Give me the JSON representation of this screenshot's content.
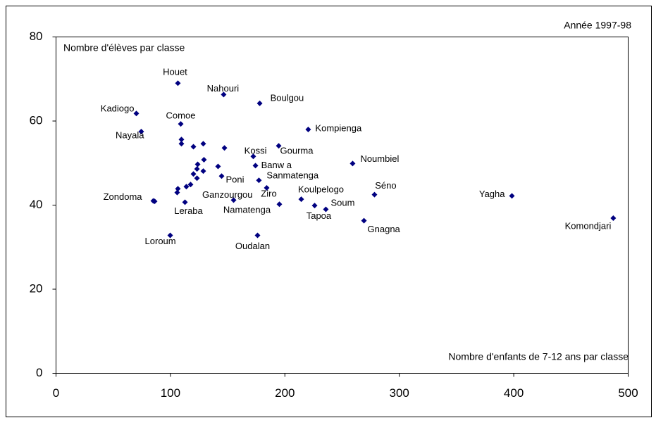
{
  "chart_data": {
    "type": "scatter",
    "annotations": [
      "Année 1997-98",
      "Nombre d'élèves par classe",
      "Nombre d'enfants de 7-12 ans par classe"
    ],
    "xlim": [
      0,
      500
    ],
    "xticks": [
      0,
      100,
      200,
      300,
      400,
      500
    ],
    "ylim": [
      0,
      80
    ],
    "yticks": [
      0,
      20,
      40,
      60,
      80
    ],
    "series": [
      {
        "color": "#000080",
        "x": [
          106.5,
          146.5,
          178,
          70.2,
          109,
          74.5,
          220.4,
          194.6,
          172.4,
          174.3,
          259.2,
          144.7,
          177.3,
          85,
          155.2,
          184.1,
          214.3,
          278.3,
          226,
          235.8,
          195.2,
          112.7,
          269.1,
          398.4,
          487,
          99.8,
          176.1,
          109.6,
          109.6,
          120.1,
          128.7,
          147.2,
          123.8,
          123.2,
          129.3,
          120.1,
          128.7,
          141.6,
          123.2,
          117.6,
          113.9,
          105.9,
          106.5,
          86.2
        ],
        "values": [
          69.0,
          66.3,
          64.2,
          61.8,
          59.3,
          57.5,
          58,
          54.1,
          51.6,
          49.4,
          49.9,
          46.9,
          45.9,
          41,
          41.2,
          44.1,
          41.4,
          42.5,
          39.9,
          39,
          40.2,
          40.7,
          36.3,
          42.2,
          36.9,
          32.8,
          32.8,
          55.6,
          54.6,
          53.9,
          54.6,
          53.6,
          49.7,
          48.6,
          50.8,
          47.4,
          48.1,
          49.2,
          46.4,
          44.9,
          44.4,
          43.0,
          43.9,
          40.9
        ],
        "labels": [
          "Houet",
          "Nahouri",
          "Boulgou",
          "Kadiogo",
          "Comoe",
          "Nayala",
          "Kompienga",
          "Gourma",
          "Kossi",
          "Banw a",
          "Noumbiel",
          "Poni",
          "Sanmatenga",
          "Zondoma",
          "Ganzourgou",
          "Ziro",
          "Koulpelogo",
          "Séno",
          "Soum",
          "Tapoa",
          "Namatenga",
          "Leraba",
          "Gnagna",
          "Yagha",
          "Komondjari",
          "Loroum",
          "Oudalan",
          null,
          null,
          null,
          null,
          null,
          null,
          null,
          null,
          null,
          null,
          null,
          null,
          null,
          null,
          null,
          null,
          null
        ]
      }
    ]
  }
}
